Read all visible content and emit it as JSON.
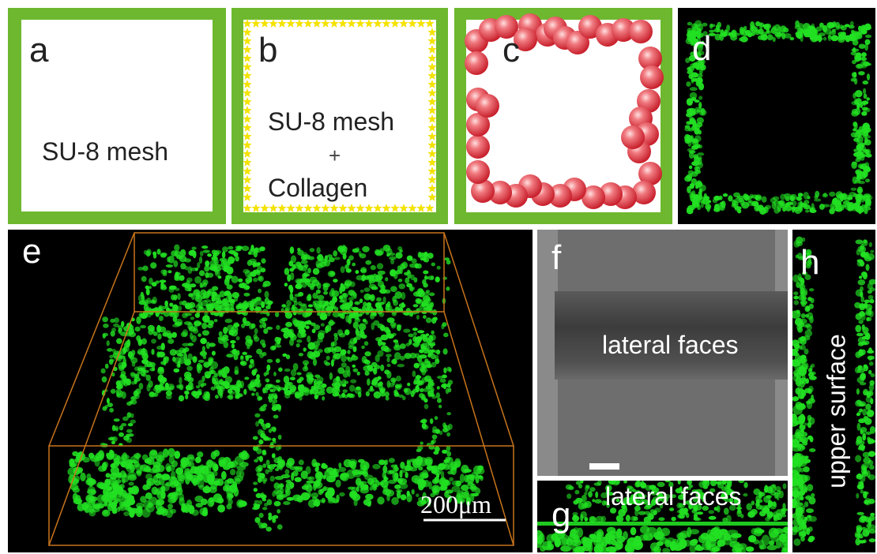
{
  "panels": {
    "a": {
      "letter": "a",
      "label": "SU-8 mesh"
    },
    "b": {
      "letter": "b",
      "label_line1": "SU-8 mesh",
      "label_plus": "+",
      "label_line2": "Collagen"
    },
    "c": {
      "letter": "c"
    },
    "d": {
      "letter": "d"
    },
    "e": {
      "letter": "e",
      "scale_bar": "200μm"
    },
    "f": {
      "letter": "f",
      "label": "lateral faces"
    },
    "g": {
      "letter": "g",
      "label": "lateral faces"
    },
    "h": {
      "letter": "h",
      "label": "upper surface"
    }
  },
  "colors": {
    "mesh_green": "#6db82e",
    "fluorescence_green": "#22e022",
    "collagen_yellow": "#f4e200",
    "cell_red": "#e0303a",
    "bounding_box_orange": "#c8741c",
    "background_black": "#000000"
  }
}
